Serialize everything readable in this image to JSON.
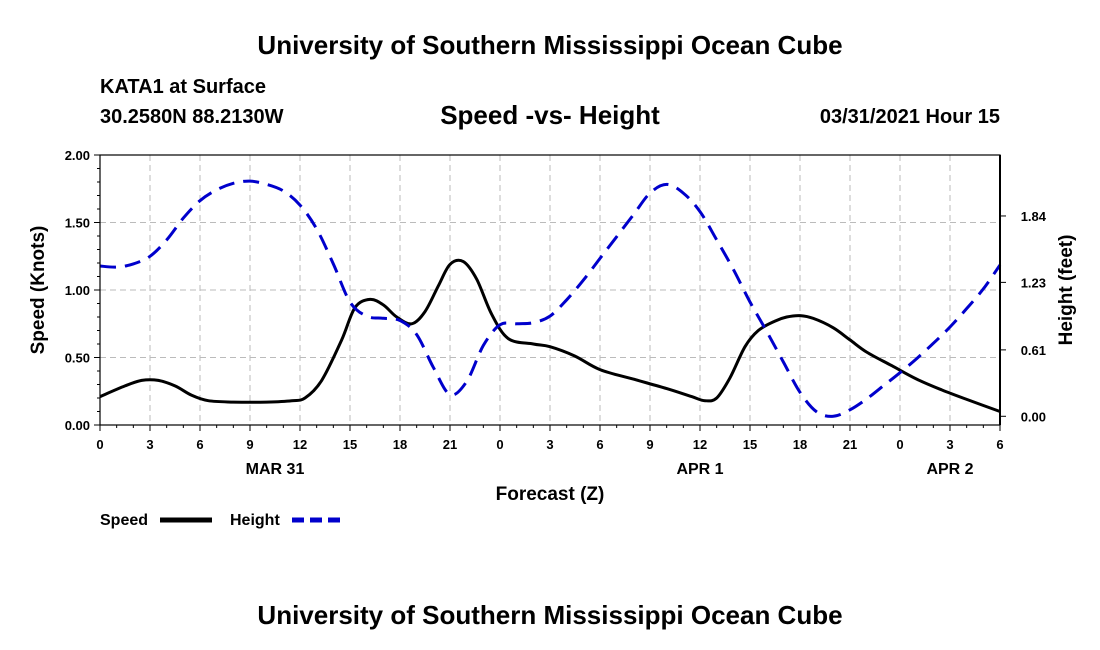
{
  "header": {
    "title": "University of Southern Mississippi Ocean Cube",
    "station": "KATA1 at Surface",
    "location": "30.2580N  88.2130W",
    "chart_title": "Speed -vs- Height",
    "datetime": "03/31/2021 Hour 15"
  },
  "footer": {
    "title": "University of Southern Mississippi Ocean Cube"
  },
  "legend": {
    "speed_label": "Speed",
    "height_label": "Height"
  },
  "colors": {
    "speed": "#000000",
    "height": "#0000cc",
    "grid": "#bbbbbb"
  },
  "chart_data": {
    "type": "line",
    "title": "Speed -vs- Height",
    "xlabel": "Forecast (Z)",
    "ylabel_left": "Speed (Knots)",
    "ylabel_right": "Height (feet)",
    "x_unit": "hours since 03/31/2021 00Z",
    "xlim": [
      0,
      54
    ],
    "ylim_left": [
      0,
      2.0
    ],
    "ylim_right": [
      -0.08,
      2.4
    ],
    "x_ticks": [
      0,
      3,
      6,
      9,
      12,
      15,
      18,
      21,
      24,
      27,
      30,
      33,
      36,
      39,
      42,
      45,
      48,
      51,
      54
    ],
    "x_tick_labels": [
      "0",
      "3",
      "6",
      "9",
      "12",
      "15",
      "18",
      "21",
      "0",
      "3",
      "6",
      "9",
      "12",
      "15",
      "18",
      "21",
      "0",
      "3",
      "6"
    ],
    "y_left_ticks": [
      0,
      0.5,
      1.0,
      1.5,
      2.0
    ],
    "y_left_tick_labels": [
      "0.00",
      "0.50",
      "1.00",
      "1.50",
      "2.00"
    ],
    "y_right_ticks": [
      0,
      0.61,
      1.23,
      1.84
    ],
    "y_right_tick_labels": [
      "0.00",
      "0.61",
      "1.23",
      "1.84"
    ],
    "date_labels": [
      {
        "x": 10.5,
        "label": "MAR 31"
      },
      {
        "x": 36,
        "label": "APR 1"
      },
      {
        "x": 51,
        "label": "APR 2"
      }
    ],
    "grid": true,
    "legend_position": "bottom-left",
    "series": [
      {
        "name": "Speed",
        "axis": "left",
        "style": "solid",
        "x": [
          0,
          1.5,
          2.5,
          3.5,
          4.5,
          5.5,
          6.5,
          8,
          10,
          11.5,
          12.3,
          13.3,
          14.5,
          15.3,
          16.2,
          17,
          17.8,
          18.7,
          19.5,
          20.3,
          21,
          21.8,
          22.6,
          23.5,
          24.5,
          26,
          27,
          28.5,
          30,
          32,
          34,
          35.5,
          36.3,
          37,
          37.8,
          38.7,
          39.5,
          40.5,
          41.2,
          42,
          42.8,
          44,
          45,
          46,
          47.5,
          49,
          50.5,
          52,
          54
        ],
        "y": [
          0.21,
          0.29,
          0.33,
          0.33,
          0.29,
          0.22,
          0.18,
          0.17,
          0.17,
          0.18,
          0.2,
          0.33,
          0.63,
          0.87,
          0.93,
          0.89,
          0.8,
          0.75,
          0.84,
          1.03,
          1.19,
          1.21,
          1.08,
          0.82,
          0.64,
          0.6,
          0.58,
          0.51,
          0.41,
          0.34,
          0.27,
          0.21,
          0.18,
          0.2,
          0.35,
          0.58,
          0.7,
          0.77,
          0.8,
          0.81,
          0.79,
          0.72,
          0.63,
          0.54,
          0.44,
          0.34,
          0.26,
          0.19,
          0.1
        ]
      },
      {
        "name": "Height",
        "axis": "right",
        "style": "dashed",
        "x": [
          0,
          1,
          2,
          3,
          4,
          5,
          6,
          7,
          8,
          9,
          10,
          11,
          12,
          13,
          14,
          15,
          16,
          17,
          18,
          19,
          20,
          21,
          22,
          23,
          24,
          25,
          26,
          27,
          28,
          29,
          30,
          31,
          32,
          33,
          34,
          35,
          36,
          37,
          38,
          39,
          40,
          41,
          42,
          43,
          44,
          45,
          46,
          47,
          48,
          49,
          50,
          51,
          52,
          53,
          54
        ],
        "y": [
          1.38,
          1.37,
          1.4,
          1.47,
          1.62,
          1.82,
          1.98,
          2.08,
          2.14,
          2.16,
          2.13,
          2.07,
          1.94,
          1.72,
          1.4,
          1.05,
          0.92,
          0.9,
          0.88,
          0.75,
          0.45,
          0.2,
          0.32,
          0.65,
          0.84,
          0.85,
          0.86,
          0.92,
          1.07,
          1.25,
          1.45,
          1.65,
          1.85,
          2.05,
          2.13,
          2.05,
          1.88,
          1.62,
          1.35,
          1.05,
          0.78,
          0.5,
          0.22,
          0.04,
          0.0,
          0.06,
          0.16,
          0.28,
          0.4,
          0.53,
          0.67,
          0.82,
          0.99,
          1.17,
          1.39
        ]
      }
    ]
  }
}
